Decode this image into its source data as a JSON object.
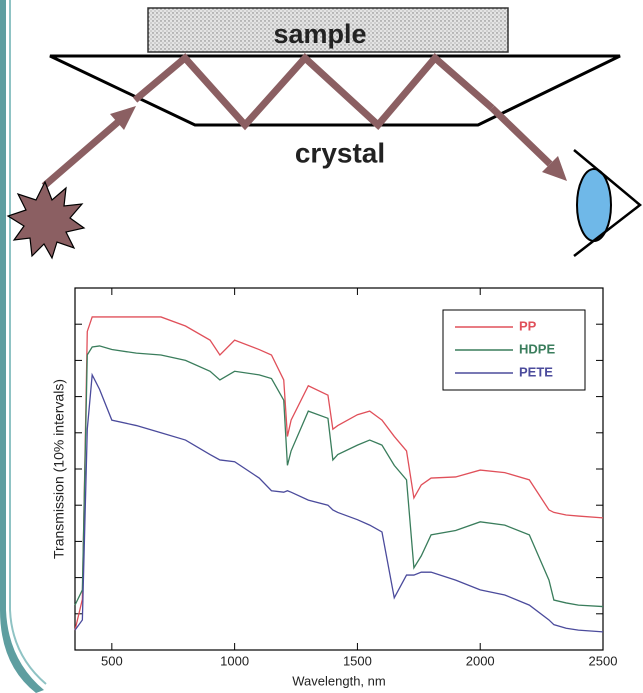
{
  "diagram": {
    "sample_label": "sample",
    "crystal_label": "crystal"
  },
  "chart_data": {
    "type": "line",
    "x_label": "Wavelength, nm",
    "y_label": "Transmission (10% intervals)",
    "x": [
      350,
      380,
      400,
      420,
      450,
      500,
      600,
      700,
      800,
      900,
      940,
      1000,
      1100,
      1150,
      1200,
      1215,
      1230,
      1300,
      1380,
      1400,
      1420,
      1500,
      1550,
      1600,
      1650,
      1700,
      1730,
      1760,
      1800,
      1900,
      2000,
      2100,
      2200,
      2280,
      2300,
      2350,
      2400,
      2500
    ],
    "series": [
      {
        "name": "PP",
        "color": "#e0505a",
        "values": [
          5.5,
          14,
          88,
          92,
          92,
          92,
          92,
          92,
          89.5,
          85.6,
          81.5,
          85.6,
          83,
          81.5,
          74.6,
          59,
          63.5,
          73,
          70.4,
          61,
          62,
          65,
          66,
          63.5,
          59,
          55,
          42,
          45.6,
          47.5,
          47.8,
          49.7,
          49,
          47,
          38.7,
          38,
          37.3,
          37,
          36.5
        ]
      },
      {
        "name": "HDPE",
        "color": "#3a7d5c",
        "values": [
          12.4,
          16.6,
          81.5,
          83.7,
          84,
          83,
          82,
          81.5,
          80,
          77,
          74.6,
          77,
          76,
          75,
          69,
          51,
          55,
          66,
          64,
          52.5,
          54,
          56.6,
          58,
          56.6,
          51,
          47,
          22.7,
          26,
          31.8,
          33,
          35.4,
          34.5,
          31.8,
          19.3,
          13.8,
          13,
          12.4,
          12
        ]
      },
      {
        "name": "PETE",
        "color": "#4b4b9c",
        "values": [
          5.5,
          8.3,
          61,
          76,
          72,
          63.5,
          62,
          60,
          58,
          54,
          52.5,
          52,
          47.5,
          44,
          43.6,
          44,
          43.6,
          41.4,
          40,
          38.7,
          38,
          36,
          34.5,
          32.6,
          14.4,
          20.7,
          20.7,
          21.5,
          21.5,
          19.3,
          16.6,
          15.2,
          12.4,
          8.3,
          7,
          6,
          5.5,
          5
        ]
      }
    ],
    "xlim": [
      350,
      2500
    ],
    "xticks": [
      500,
      1000,
      1500,
      2000,
      2500
    ],
    "ylim": [
      0,
      100
    ],
    "yticks": [
      0,
      10,
      20,
      30,
      40,
      50,
      60,
      70,
      80,
      90,
      100
    ],
    "legend": "upper right"
  }
}
